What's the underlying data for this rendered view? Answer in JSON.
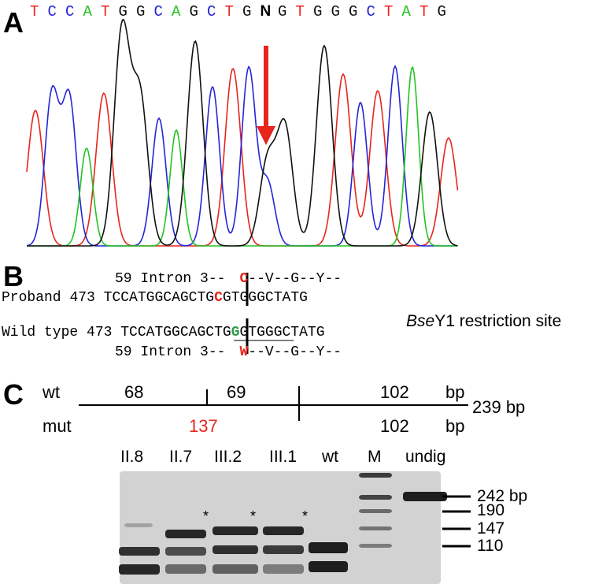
{
  "panels": {
    "a": "A",
    "b": "B",
    "c": "C"
  },
  "chromatogram": {
    "bases": [
      {
        "base": "T",
        "color": "#e8251c"
      },
      {
        "base": "C",
        "color": "#2525d8"
      },
      {
        "base": "C",
        "color": "#2525d8"
      },
      {
        "base": "A",
        "color": "#22c422"
      },
      {
        "base": "T",
        "color": "#e8251c"
      },
      {
        "base": "G",
        "color": "#111111"
      },
      {
        "base": "G",
        "color": "#111111"
      },
      {
        "base": "C",
        "color": "#2525d8"
      },
      {
        "base": "A",
        "color": "#22c422"
      },
      {
        "base": "G",
        "color": "#111111"
      },
      {
        "base": "C",
        "color": "#2525d8"
      },
      {
        "base": "T",
        "color": "#e8251c"
      },
      {
        "base": "G",
        "color": "#111111"
      },
      {
        "base": "N",
        "color": "#000000",
        "bold": true
      },
      {
        "base": "G",
        "color": "#111111"
      },
      {
        "base": "T",
        "color": "#e8251c"
      },
      {
        "base": "G",
        "color": "#111111"
      },
      {
        "base": "G",
        "color": "#111111"
      },
      {
        "base": "G",
        "color": "#111111"
      },
      {
        "base": "C",
        "color": "#2525d8"
      },
      {
        "base": "T",
        "color": "#e8251c"
      },
      {
        "base": "A",
        "color": "#22c422"
      },
      {
        "base": "T",
        "color": "#e8251c"
      },
      {
        "base": "G",
        "color": "#111111"
      }
    ]
  },
  "alignment": {
    "proband_prot_num": "59",
    "proband_prot_label": "Intron 3--",
    "proband_prot_mut": "C",
    "proband_prot_rest": "--V--G--Y--",
    "proband_label": "Proband",
    "proband_num": "473",
    "proband_seq_a": "TCCATGGCAGCTG",
    "proband_seq_mut": "C",
    "proband_seq_b": "GTGGGCTATG",
    "wt_label": "Wild type",
    "wt_num": "473",
    "wt_seq_a": "TCCATGGCAGCTG",
    "wt_seq_mut": "G",
    "wt_seq_b": "GTGGGCTATG",
    "wt_prot_num": "59",
    "wt_prot_label": "Intron 3--",
    "wt_prot_mut": "W",
    "wt_prot_rest": "--V--G--Y--",
    "restriction_italic": "Bse",
    "restriction_rest": "Y1 restriction site"
  },
  "map": {
    "wt_label": "wt",
    "mut_label": "mut",
    "wt_frag1": "68",
    "wt_frag2": "69",
    "wt_frag3": "102",
    "wt_unit": "bp",
    "total": "239 bp",
    "mut_frag1": "137",
    "mut_frag2": "102",
    "mut_unit": "bp"
  },
  "gel": {
    "lanes": [
      "II.8",
      "II.7",
      "III.2",
      "III.1",
      "wt",
      "M",
      "undig"
    ],
    "star": "*",
    "ladder": [
      "242 bp",
      "190",
      "147",
      "110"
    ]
  },
  "colors": {
    "A": "#22c422",
    "C": "#2525d8",
    "G": "#111111",
    "T": "#e8251c",
    "arrow": "#e8251c",
    "gel_bg": "#d2d2d2"
  }
}
